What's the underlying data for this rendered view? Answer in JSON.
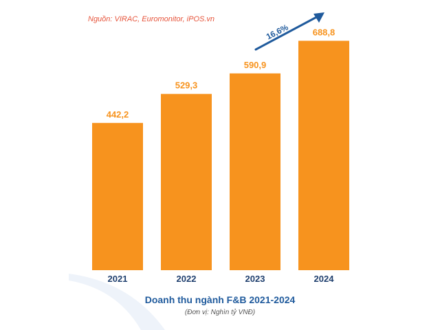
{
  "source": "Nguồn: VIRAC, Euromonitor, iPOS.vn",
  "growth_label": "16,6%",
  "colors": {
    "bar": "#f7931e",
    "value_label": "#f7931e",
    "year_label": "#1f3f6e",
    "arrow": "#1f5a9c",
    "title": "#1f5a9c",
    "source": "#e6543b"
  },
  "chart_data": {
    "type": "bar",
    "categories": [
      "2021",
      "2022",
      "2023",
      "2024"
    ],
    "values": [
      442.2,
      529.3,
      590.9,
      688.8
    ],
    "value_labels": [
      "442,2",
      "529,3",
      "590,9",
      "688,8"
    ],
    "title": "Doanh thu ngành F&B 2021-2024",
    "subtitle": "(Đơn vị: Nghìn tỷ VNĐ)",
    "ylim": [
      0,
      770
    ],
    "grid": false,
    "legend": "none"
  }
}
